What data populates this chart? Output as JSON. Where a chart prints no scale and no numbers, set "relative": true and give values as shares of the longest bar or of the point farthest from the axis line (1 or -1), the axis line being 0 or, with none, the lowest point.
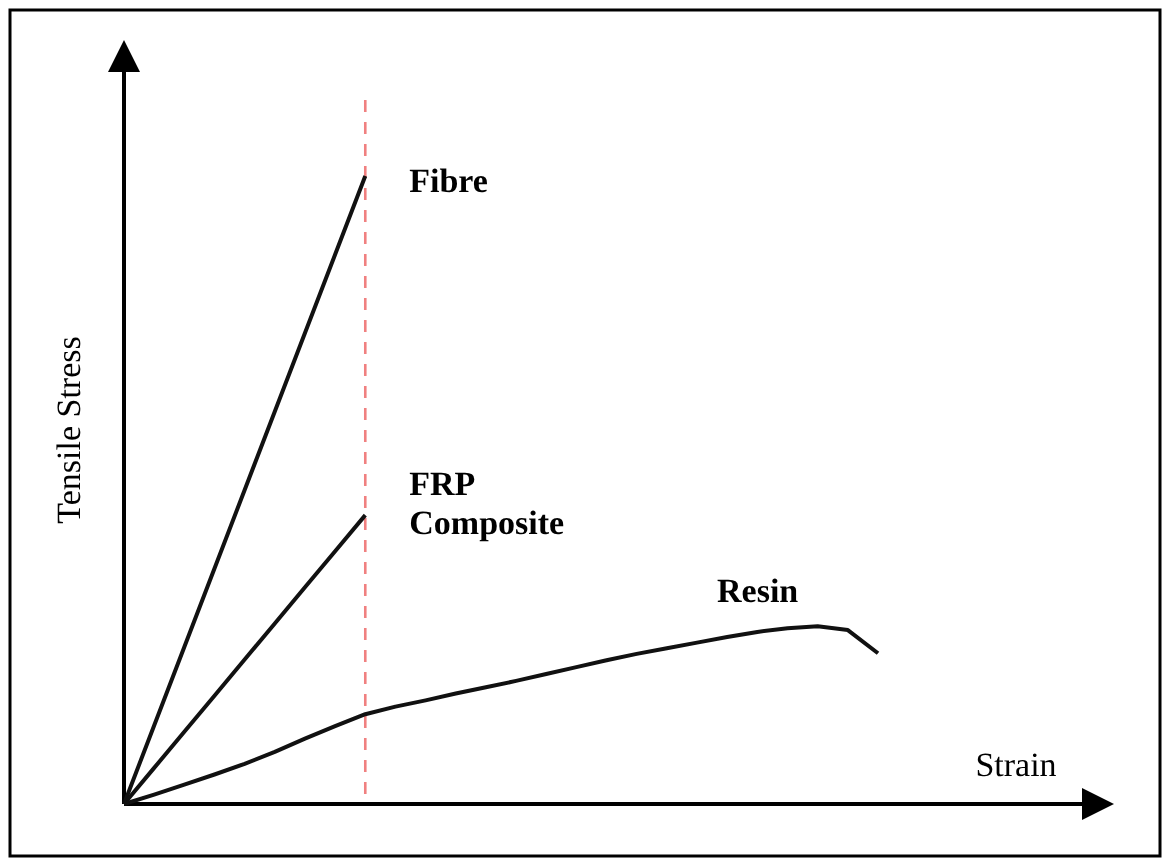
{
  "chart_data": {
    "type": "line",
    "relative": true,
    "xlabel": "Strain",
    "ylabel": "Tensile Stress",
    "line_style": "solid",
    "marker": "none",
    "legend": false,
    "categories": [
      null,
      null,
      null,
      null,
      null,
      null,
      null,
      null,
      null,
      null,
      null,
      null,
      null,
      null,
      null,
      null,
      null,
      null,
      null,
      null,
      null,
      null,
      null,
      null,
      null,
      null
    ],
    "series": [
      {
        "name": "Fibre",
        "color": "#111111",
        "values": [
          0,
          0.125,
          0.25,
          0.375,
          0.5,
          0.625,
          0.75,
          0.875,
          1,
          null,
          null,
          null,
          null,
          null,
          null,
          null,
          null,
          null,
          null,
          null,
          null,
          null,
          null,
          null,
          null,
          null
        ]
      },
      {
        "name": "FRP Composite",
        "color": "#111111",
        "values": [
          0,
          0.0575,
          0.115,
          0.1725,
          0.23,
          0.2875,
          0.345,
          0.4025,
          0.46,
          null,
          null,
          null,
          null,
          null,
          null,
          null,
          null,
          null,
          null,
          null,
          null,
          null,
          null,
          null,
          null,
          null
        ]
      },
      {
        "name": "Resin",
        "color": "#111111",
        "values": [
          0,
          0.015,
          0.031,
          0.047,
          0.064,
          0.083,
          0.104,
          0.124,
          0.143,
          0.155,
          0.165,
          0.176,
          0.186,
          0.196,
          0.207,
          0.218,
          0.229,
          0.239,
          0.248,
          0.257,
          0.266,
          0.274,
          0.28,
          0.283,
          0.277,
          0.24
        ]
      }
    ]
  }
}
